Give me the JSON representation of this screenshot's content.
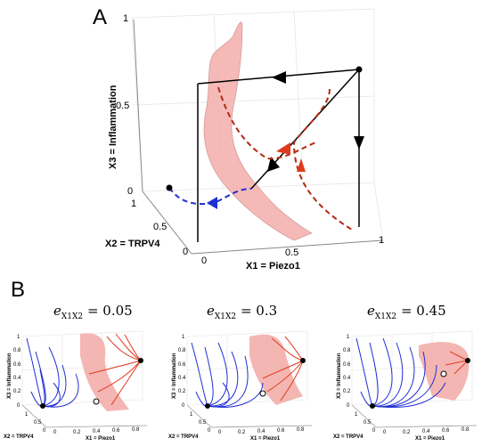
{
  "panel_a": {
    "letter": "A",
    "x_axis_label": "X1 = Piezo1",
    "y_axis_label": "X2 = TRPV4",
    "z_axis_label": "X3 = Inflammation",
    "z_ticks": [
      "0",
      "0.5",
      "1"
    ],
    "y_ticks": [
      "0",
      "0.5",
      "1"
    ],
    "x_ticks": [
      "0",
      "0.5",
      "1"
    ]
  },
  "panel_b": {
    "letter": "B",
    "subplots": [
      {
        "coef_symbol": "e",
        "coef_sub": "X1X2",
        "value": "0.05"
      },
      {
        "coef_symbol": "e",
        "coef_sub": "X1X2",
        "value": "0.3"
      },
      {
        "coef_symbol": "e",
        "coef_sub": "X1X2",
        "value": "0.45"
      }
    ],
    "x_axis_label": "X1 = Piezo1",
    "y_axis_label": "X2 = TRPV4",
    "z_axis_label": "X3 = Inflammation",
    "z_ticks": [
      "0",
      "0.2",
      "0.4",
      "0.6",
      "0.8",
      "1"
    ],
    "y_ticks": [
      "0",
      "0.5",
      "1"
    ],
    "x_ticks": [
      "0",
      "0.2",
      "0.4",
      "0.6",
      "0.8"
    ]
  },
  "colors": {
    "surface": "#f2a9a5",
    "blue": "#1f2fd6",
    "red": "#e03a1e",
    "dark_red": "#b22a14"
  }
}
